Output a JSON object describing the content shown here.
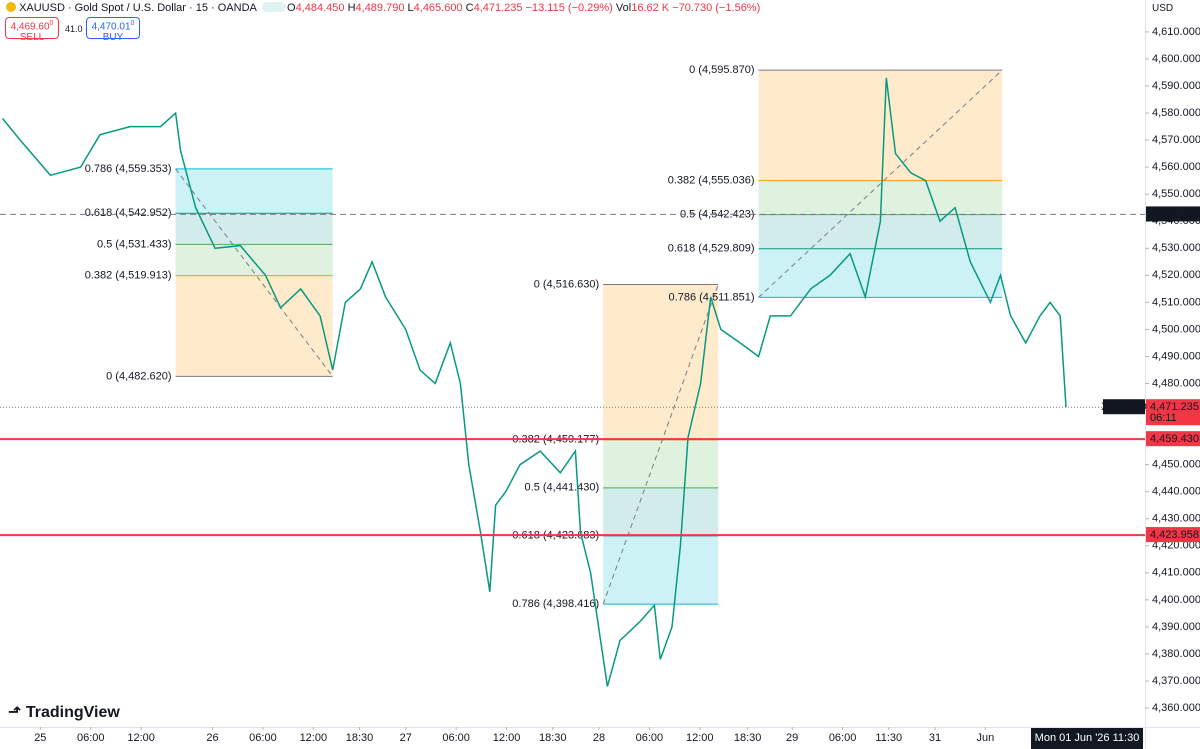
{
  "header": {
    "symbol": "XAUUSD · Gold Spot / U.S. Dollar · 15 · OANDA",
    "ohlc": [
      {
        "label": "O",
        "value": "4,484.450"
      },
      {
        "label": "H",
        "value": "4,489.790"
      },
      {
        "label": "L",
        "value": "4,465.600"
      },
      {
        "label": "C",
        "value": "4,471.235"
      }
    ],
    "change": "−13.115 (−0.29%)",
    "vol_label": "Vol",
    "vol": "16.62 K",
    "vol_change": "−70.730 (−1.56%)",
    "sell_price": "4,469.60",
    "sell_sup": "0",
    "sell_label": "SELL",
    "spread": "41.0",
    "buy_price": "4,470.01",
    "buy_sup": "0",
    "buy_label": "BUY",
    "currency": "USD"
  },
  "footer": {
    "brand": "TradingView",
    "crosshair_time": "Mon 01 Jun '26   11:30"
  },
  "chart_data": {
    "type": "line",
    "color": "#089981",
    "x": [
      -4.5,
      -2.4,
      1.2,
      4.8,
      7.1,
      10.7,
      14.3,
      16.1,
      16.7,
      18.5,
      20.8,
      23.8,
      26.8,
      28.6,
      31,
      33.3,
      34.8,
      36.3,
      38.1,
      39.5,
      41.1,
      43.5,
      45.2,
      47,
      48.8,
      50,
      51,
      52.4,
      53.5,
      54.2,
      55.4,
      57.1,
      59.5,
      61.9,
      63.7,
      64.3,
      65.5,
      66.7,
      67.5,
      69,
      71.4,
      73.1,
      73.8,
      75.2,
      76.2,
      77.1,
      78.6,
      79.8,
      81,
      83.3,
      85.5,
      86.9,
      89.3,
      91.7,
      94,
      96.4,
      98.2,
      100,
      100.7,
      101.8,
      103.6,
      105.4,
      107.1,
      108.9,
      110.7,
      113.1,
      114.3,
      115.5,
      117.3,
      119,
      120.2,
      121.4,
      122.1
    ],
    "values": [
      4578,
      4570,
      4557,
      4560,
      4572,
      4575,
      4575,
      4580,
      4566,
      4545,
      4530,
      4531,
      4520,
      4508,
      4515,
      4505,
      4485,
      4510,
      4515,
      4525,
      4512,
      4500,
      4485,
      4480,
      4495,
      4480,
      4450,
      4425,
      4403,
      4435,
      4440,
      4450,
      4455,
      4447,
      4455,
      4425,
      4410,
      4385,
      4368,
      4385,
      4392,
      4398,
      4378,
      4390,
      4420,
      4460,
      4480,
      4512,
      4500,
      4495,
      4490,
      4505,
      4505,
      4515,
      4520,
      4528,
      4512,
      4540,
      4593,
      4565,
      4558,
      4555,
      4540,
      4545,
      4525,
      4510,
      4520,
      4505,
      4495,
      4505,
      4510,
      4505,
      4471.235
    ],
    "xlim": [
      -4.8,
      131.5
    ],
    "xticks": [
      {
        "value": 0,
        "label": "25"
      },
      {
        "value": 6,
        "label": "06:00"
      },
      {
        "value": 12,
        "label": "12:00"
      },
      {
        "value": 20.5,
        "label": "26"
      },
      {
        "value": 26.5,
        "label": "06:00"
      },
      {
        "value": 32.5,
        "label": "12:00"
      },
      {
        "value": 38,
        "label": "18:30"
      },
      {
        "value": 43.5,
        "label": "27"
      },
      {
        "value": 49.5,
        "label": "06:00"
      },
      {
        "value": 55.5,
        "label": "12:00"
      },
      {
        "value": 61,
        "label": "18:30"
      },
      {
        "value": 66.5,
        "label": "28"
      },
      {
        "value": 72.5,
        "label": "06:00"
      },
      {
        "value": 78.5,
        "label": "12:00"
      },
      {
        "value": 84.2,
        "label": "18:30"
      },
      {
        "value": 89.5,
        "label": "29"
      },
      {
        "value": 95.5,
        "label": "06:00"
      },
      {
        "value": 101,
        "label": "11:30"
      },
      {
        "value": 106.5,
        "label": "31"
      },
      {
        "value": 112.5,
        "label": "Jun"
      }
    ],
    "ylim": [
      4353,
      4621.8
    ],
    "yticks": [
      {
        "value": 4360,
        "label": "4,360.000"
      },
      {
        "value": 4370,
        "label": "4,370.000"
      },
      {
        "value": 4380,
        "label": "4,380.000"
      },
      {
        "value": 4390,
        "label": "4,390.000"
      },
      {
        "value": 4400,
        "label": "4,400.000"
      },
      {
        "value": 4410,
        "label": "4,410.000"
      },
      {
        "value": 4420,
        "label": "4,420.000"
      },
      {
        "value": 4430,
        "label": "4,430.000"
      },
      {
        "value": 4440,
        "label": "4,440.000"
      },
      {
        "value": 4450,
        "label": "4,450.000"
      },
      {
        "value": 4460,
        "label": "4,460.000"
      },
      {
        "value": 4470,
        "label": "4,470.000"
      },
      {
        "value": 4480,
        "label": "4,480.000"
      },
      {
        "value": 4490,
        "label": "4,490.000"
      },
      {
        "value": 4500,
        "label": "4,500.000"
      },
      {
        "value": 4510,
        "label": "4,510.000"
      },
      {
        "value": 4520,
        "label": "4,520.000"
      },
      {
        "value": 4530,
        "label": "4,530.000"
      },
      {
        "value": 4540,
        "label": "4,540.000"
      },
      {
        "value": 4550,
        "label": "4,550.000"
      },
      {
        "value": 4560,
        "label": "4,560.000"
      },
      {
        "value": 4570,
        "label": "4,570.000"
      },
      {
        "value": 4580,
        "label": "4,580.000"
      },
      {
        "value": 4590,
        "label": "4,590.000"
      },
      {
        "value": 4600,
        "label": "4,600.000"
      },
      {
        "value": 4610,
        "label": "4,610.000"
      }
    ],
    "price_lines": [
      {
        "value": 4459.43,
        "label": "4,459.430",
        "color": "#f23645",
        "style": "solid"
      },
      {
        "value": 4423.958,
        "label": "4,423.958",
        "color": "#f23645",
        "style": "solid"
      },
      {
        "value": 4542.523,
        "label": "4,542.523",
        "color": "#131722",
        "style": "dashed"
      },
      {
        "value": 4471.235,
        "label": "4,471.235",
        "color": "#f23645",
        "style": "dotted",
        "tag": "XAUUSD",
        "countdown": "06:11"
      }
    ],
    "fibs": [
      {
        "x": [
          16.1,
          34.8
        ],
        "levels": [
          {
            "value": 4482.62,
            "label": "0 (4,482.620)",
            "color": "#787b86"
          },
          {
            "value": 4519.913,
            "label": "0.382 (4,519.913)",
            "color": "#f59d0b"
          },
          {
            "value": 4531.433,
            "label": "0.5 (4,531.433)",
            "color": "#4caf50"
          },
          {
            "value": 4542.952,
            "label": "0.618 (4,542.952)",
            "color": "#089981"
          },
          {
            "value": 4559.353,
            "label": "0.786 (4,559.353)",
            "color": "#00bcd4"
          }
        ]
      },
      {
        "x": [
          67,
          80.7
        ],
        "levels": [
          {
            "value": 4516.63,
            "label": "0 (4,516.630)",
            "color": "#787b86"
          },
          {
            "value": 4459.177,
            "label": "0.382 (4,459.177)",
            "color": "#f59d0b"
          },
          {
            "value": 4441.43,
            "label": "0.5 (4,441.430)",
            "color": "#4caf50"
          },
          {
            "value": 4423.683,
            "label": "0.618 (4,423.683)",
            "color": "#089981"
          },
          {
            "value": 4398.416,
            "label": "0.786 (4,398.416)",
            "color": "#00bcd4"
          }
        ]
      },
      {
        "x": [
          85.5,
          114.5
        ],
        "levels": [
          {
            "value": 4595.87,
            "label": "0 (4,595.870)",
            "color": "#787b86"
          },
          {
            "value": 4555.036,
            "label": "0.382 (4,555.036)",
            "color": "#f59d0b"
          },
          {
            "value": 4542.423,
            "label": "0.5 (4,542.423)",
            "color": "#4caf50"
          },
          {
            "value": 4529.809,
            "label": "0.618 (4,529.809)",
            "color": "#089981"
          },
          {
            "value": 4511.851,
            "label": "0.786 (4,511.851)",
            "color": "#00bcd4"
          }
        ]
      }
    ]
  }
}
